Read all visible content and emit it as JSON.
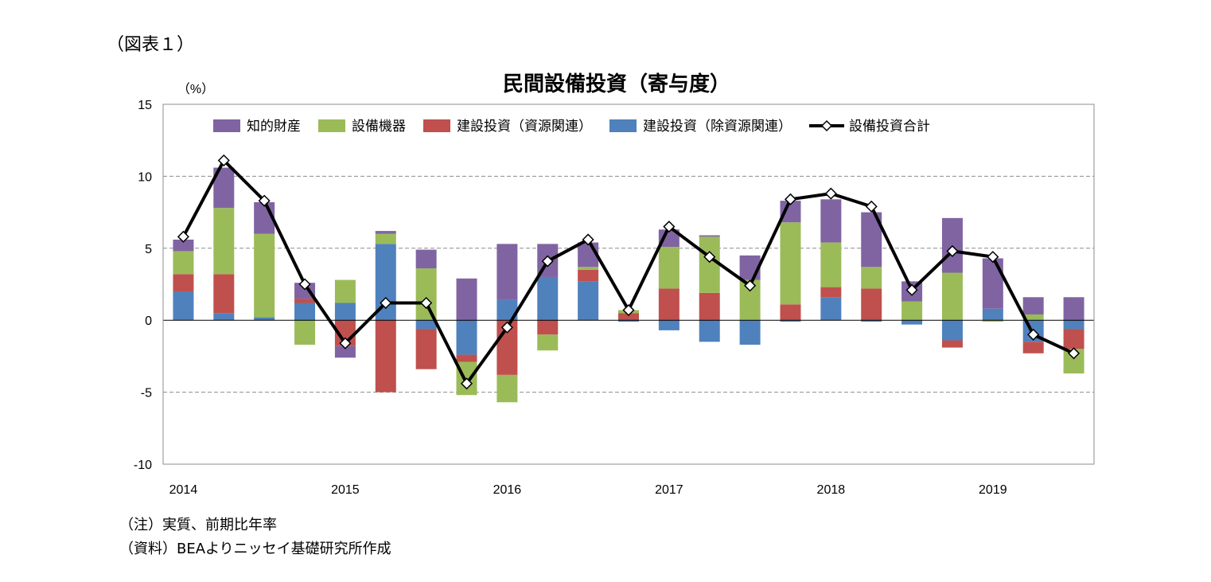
{
  "figure_label": "（図表１）",
  "notes": [
    "（注）実質、前期比年率",
    "（資料）BEAよりニッセイ基礎研究所作成"
  ],
  "chart_data": {
    "type": "bar",
    "stacked": true,
    "title": "民間設備投資（寄与度）",
    "ylabel": "（%）",
    "xlabel": "",
    "ylim": [
      -10,
      15
    ],
    "yticks": [
      -10,
      -5,
      0,
      5,
      10,
      15
    ],
    "grid": "horizontal dashed",
    "legend_position": "top",
    "x_tick_labels": [
      "2014",
      "2015",
      "2016",
      "2017",
      "2018",
      "2019"
    ],
    "categories": [
      "2014Q1",
      "2014Q2",
      "2014Q3",
      "2014Q4",
      "2015Q1",
      "2015Q2",
      "2015Q3",
      "2015Q4",
      "2016Q1",
      "2016Q2",
      "2016Q3",
      "2016Q4",
      "2017Q1",
      "2017Q2",
      "2017Q3",
      "2017Q4",
      "2018Q1",
      "2018Q2",
      "2018Q3",
      "2018Q4",
      "2019Q1",
      "2019Q2",
      "2019Q3"
    ],
    "series": [
      {
        "name": "知的財産",
        "kind": "bar",
        "color": "#8064a2",
        "values": [
          0.8,
          2.8,
          2.2,
          1.1,
          -0.8,
          0.2,
          1.3,
          2.9,
          3.9,
          2.3,
          1.7,
          0.0,
          1.2,
          0.1,
          1.7,
          1.5,
          3.0,
          3.8,
          1.4,
          3.8,
          3.5,
          1.2,
          1.6
        ]
      },
      {
        "name": "設備機器",
        "kind": "bar",
        "color": "#9bbb59",
        "values": [
          1.6,
          4.6,
          5.8,
          -1.7,
          1.6,
          0.7,
          3.6,
          -2.3,
          -1.9,
          -1.1,
          0.2,
          0.2,
          2.9,
          3.9,
          2.8,
          5.7,
          3.1,
          1.5,
          1.3,
          3.3,
          -0.1,
          0.4,
          -1.7
        ]
      },
      {
        "name": "建設投資（資源関連）",
        "kind": "bar",
        "color": "#c0504d",
        "values": [
          1.2,
          2.7,
          0.0,
          0.3,
          -1.8,
          -5.0,
          -2.8,
          -0.5,
          -3.8,
          -1.0,
          0.8,
          0.5,
          2.2,
          1.9,
          0.0,
          1.1,
          0.7,
          2.2,
          0.0,
          -0.5,
          0.0,
          -0.8,
          -1.4
        ]
      },
      {
        "name": "建設投資（除資源関連）",
        "kind": "bar",
        "color": "#4f81bd",
        "values": [
          2.0,
          0.5,
          0.2,
          1.2,
          1.2,
          5.3,
          -0.6,
          -2.4,
          1.4,
          3.0,
          2.7,
          -0.1,
          -0.7,
          -1.5,
          -1.7,
          -0.1,
          1.6,
          -0.1,
          -0.3,
          -1.4,
          0.8,
          -1.5,
          -0.6
        ]
      },
      {
        "name": "設備投資合計",
        "kind": "line",
        "color": "#000000",
        "values": [
          5.8,
          11.1,
          8.3,
          2.5,
          -1.6,
          1.2,
          1.2,
          -4.4,
          -0.5,
          4.1,
          5.6,
          0.7,
          6.5,
          4.4,
          2.4,
          8.4,
          8.8,
          7.9,
          2.1,
          4.8,
          4.4,
          -1.0,
          -2.3
        ]
      }
    ]
  }
}
